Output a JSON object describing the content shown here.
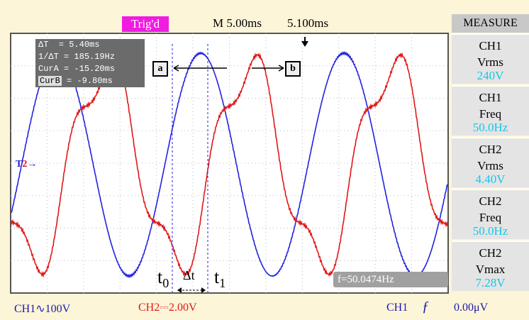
{
  "top_bar": {
    "status": "Trig'd",
    "timebase": "M 5.00ms",
    "trigger_position": "5.100ms"
  },
  "cursor_readout": [
    {
      "label": "ΔT",
      "value": "  = 5.40ms"
    },
    {
      "label": "1/ΔT",
      "value": " = 185.19Hz"
    },
    {
      "label": "CurA",
      "value": " = -15.20ms"
    },
    {
      "label": "CurB",
      "value": " = -9.80ms"
    }
  ],
  "cursor_labels": {
    "a": "a",
    "b": "b",
    "t0": {
      "base": "t",
      "sub": "0"
    },
    "delta": "Δt",
    "t1": {
      "base": "t",
      "sub": "1"
    }
  },
  "level_marker": {
    "ch1": "T",
    "ch2": "2"
  },
  "frequency_counter": "f=50.0474Hz",
  "measure": {
    "title": "MEASURE",
    "items": [
      {
        "channel": "CH1",
        "quantity": "Vrms",
        "value": "240V"
      },
      {
        "channel": "CH1",
        "quantity": "Freq",
        "value": "50.0Hz"
      },
      {
        "channel": "CH2",
        "quantity": "Vrms",
        "value": "4.40V"
      },
      {
        "channel": "CH2",
        "quantity": "Freq",
        "value": "50.0Hz"
      },
      {
        "channel": "CH2",
        "quantity": "Vmax",
        "value": "7.28V"
      }
    ]
  },
  "bottom_bar": {
    "ch1_scale": "CH1∿100V",
    "ch2_scale": "CH2⎓2.00V",
    "trigger_source": "CH1",
    "trigger_edge": "ƒ",
    "trigger_level": "0.00μV"
  }
}
